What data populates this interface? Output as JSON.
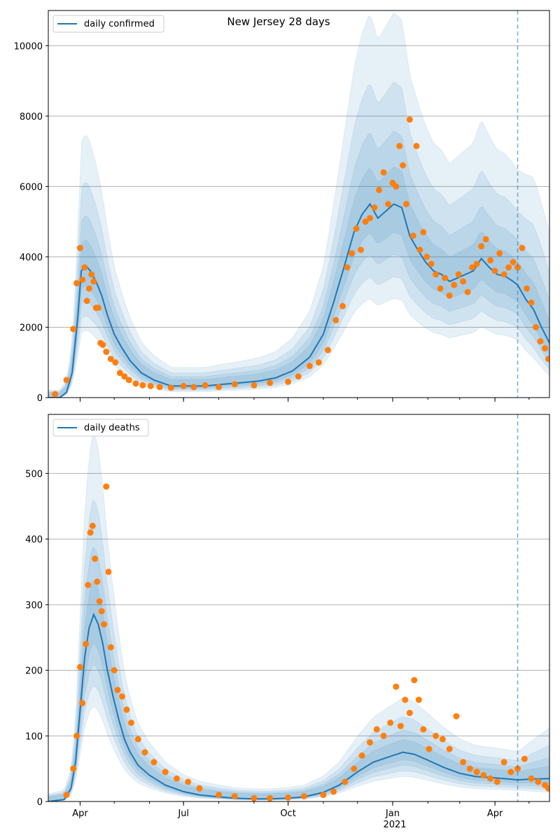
{
  "figure": {
    "title": "New Jersey 28 days",
    "x_tick_labels": [
      "Apr",
      "Jul",
      "Oct",
      "Jan",
      "Apr"
    ],
    "x_tick_dates": [
      "2020-04-01",
      "2020-07-01",
      "2020-10-01",
      "2021-01-01",
      "2021-04-01"
    ],
    "x_year_label": "2021",
    "x_range": [
      "2020-03-04",
      "2021-05-19"
    ],
    "forecast_start": "2021-04-21"
  },
  "chart_data": [
    {
      "type": "line",
      "legend": "daily confirmed",
      "legend_position": "top-left",
      "ylim": [
        0,
        11000
      ],
      "yticks": [
        0,
        2000,
        4000,
        6000,
        8000,
        10000
      ],
      "grid": "horizontal",
      "colors": {
        "line": "#1f77b4",
        "observed": "#ff7f0e",
        "band": "#1f77b4",
        "forecast_marker": "#1f77b4"
      },
      "series": [
        {
          "name": "daily confirmed",
          "x": [
            "2020-03-04",
            "2020-03-14",
            "2020-03-20",
            "2020-03-25",
            "2020-03-30",
            "2020-04-02",
            "2020-04-06",
            "2020-04-10",
            "2020-04-15",
            "2020-04-20",
            "2020-04-25",
            "2020-05-01",
            "2020-05-08",
            "2020-05-15",
            "2020-05-25",
            "2020-06-05",
            "2020-06-20",
            "2020-07-05",
            "2020-07-20",
            "2020-08-05",
            "2020-08-20",
            "2020-09-05",
            "2020-09-20",
            "2020-10-05",
            "2020-10-20",
            "2020-11-01",
            "2020-11-10",
            "2020-11-20",
            "2020-11-28",
            "2020-12-05",
            "2020-12-12",
            "2020-12-19",
            "2020-12-26",
            "2021-01-02",
            "2021-01-09",
            "2021-01-16",
            "2021-01-23",
            "2021-01-30",
            "2021-02-06",
            "2021-02-13",
            "2021-02-20",
            "2021-02-27",
            "2021-03-06",
            "2021-03-13",
            "2021-03-20",
            "2021-03-27",
            "2021-04-03",
            "2021-04-10",
            "2021-04-17",
            "2021-04-21",
            "2021-04-28",
            "2021-05-05",
            "2021-05-12",
            "2021-05-19"
          ],
          "y": [
            0,
            0,
            150,
            700,
            2300,
            3600,
            3750,
            3600,
            3300,
            2900,
            2350,
            1800,
            1400,
            1050,
            700,
            500,
            330,
            330,
            330,
            380,
            420,
            470,
            560,
            760,
            1150,
            1800,
            2700,
            3800,
            4700,
            5200,
            5500,
            5100,
            5300,
            5500,
            5400,
            4600,
            4200,
            3850,
            3600,
            3500,
            3300,
            3400,
            3500,
            3600,
            3950,
            3700,
            3500,
            3450,
            3300,
            3200,
            2800,
            2500,
            2000,
            1550
          ]
        },
        {
          "name": "daily confirmed observed",
          "x": [
            "2020-03-10",
            "2020-03-20",
            "2020-03-26",
            "2020-03-29",
            "2020-04-01",
            "2020-04-03",
            "2020-04-05",
            "2020-04-07",
            "2020-04-09",
            "2020-04-11",
            "2020-04-13",
            "2020-04-15",
            "2020-04-17",
            "2020-04-19",
            "2020-04-21",
            "2020-04-24",
            "2020-04-28",
            "2020-05-02",
            "2020-05-06",
            "2020-05-10",
            "2020-05-14",
            "2020-05-20",
            "2020-05-26",
            "2020-06-02",
            "2020-06-10",
            "2020-06-20",
            "2020-07-01",
            "2020-07-10",
            "2020-07-20",
            "2020-08-01",
            "2020-08-15",
            "2020-09-01",
            "2020-09-15",
            "2020-10-01",
            "2020-10-10",
            "2020-10-20",
            "2020-10-28",
            "2020-11-05",
            "2020-11-12",
            "2020-11-18",
            "2020-11-22",
            "2020-11-26",
            "2020-11-30",
            "2020-12-04",
            "2020-12-08",
            "2020-12-12",
            "2020-12-16",
            "2020-12-20",
            "2020-12-24",
            "2020-12-28",
            "2021-01-01",
            "2021-01-04",
            "2021-01-07",
            "2021-01-10",
            "2021-01-13",
            "2021-01-16",
            "2021-01-19",
            "2021-01-22",
            "2021-01-25",
            "2021-01-28",
            "2021-01-31",
            "2021-02-04",
            "2021-02-08",
            "2021-02-12",
            "2021-02-16",
            "2021-02-20",
            "2021-02-24",
            "2021-02-28",
            "2021-03-04",
            "2021-03-08",
            "2021-03-12",
            "2021-03-16",
            "2021-03-20",
            "2021-03-24",
            "2021-03-28",
            "2021-04-01",
            "2021-04-05",
            "2021-04-09",
            "2021-04-13",
            "2021-04-17",
            "2021-04-21",
            "2021-04-25",
            "2021-04-29",
            "2021-05-03",
            "2021-05-07",
            "2021-05-11",
            "2021-05-15",
            "2021-05-18"
          ],
          "y": [
            100,
            500,
            1950,
            3250,
            4250,
            3350,
            3700,
            2750,
            3100,
            3500,
            3300,
            2550,
            2550,
            1550,
            1500,
            1300,
            1100,
            1000,
            700,
            600,
            500,
            400,
            350,
            330,
            300,
            280,
            330,
            300,
            350,
            300,
            380,
            350,
            420,
            450,
            600,
            900,
            1000,
            1350,
            2200,
            2600,
            3700,
            4100,
            4800,
            4200,
            5000,
            5100,
            5400,
            5900,
            6400,
            5500,
            6100,
            6000,
            7150,
            6600,
            5500,
            7900,
            4600,
            7150,
            4200,
            4700,
            4000,
            3800,
            3500,
            3100,
            3400,
            2900,
            3200,
            3500,
            3300,
            3000,
            3700,
            3800,
            4300,
            4500,
            3900,
            3600,
            4100,
            3500,
            3700,
            3850,
            3700,
            4250,
            3100,
            2700,
            2000,
            1600,
            1400,
            1100
          ]
        }
      ]
    },
    {
      "type": "line",
      "legend": "daily deaths",
      "legend_position": "top-left",
      "ylim": [
        0,
        590
      ],
      "yticks": [
        0,
        100,
        200,
        300,
        400,
        500
      ],
      "grid": "horizontal",
      "colors": {
        "line": "#1f77b4",
        "observed": "#ff7f0e",
        "band": "#1f77b4",
        "forecast_marker": "#1f77b4"
      },
      "series": [
        {
          "name": "daily deaths",
          "x": [
            "2020-03-04",
            "2020-03-18",
            "2020-03-24",
            "2020-03-28",
            "2020-04-01",
            "2020-04-05",
            "2020-04-09",
            "2020-04-13",
            "2020-04-17",
            "2020-04-21",
            "2020-04-25",
            "2020-04-30",
            "2020-05-05",
            "2020-05-10",
            "2020-05-15",
            "2020-05-22",
            "2020-06-01",
            "2020-06-15",
            "2020-07-01",
            "2020-07-15",
            "2020-08-01",
            "2020-08-15",
            "2020-09-01",
            "2020-09-15",
            "2020-10-01",
            "2020-10-15",
            "2020-11-01",
            "2020-11-15",
            "2020-12-01",
            "2020-12-15",
            "2021-01-01",
            "2021-01-10",
            "2021-01-20",
            "2021-02-01",
            "2021-02-15",
            "2021-03-01",
            "2021-03-15",
            "2021-04-01",
            "2021-04-15",
            "2021-04-21",
            "2021-05-01",
            "2021-05-19"
          ],
          "y": [
            0,
            3,
            20,
            60,
            140,
            220,
            265,
            285,
            270,
            240,
            200,
            160,
            125,
            95,
            75,
            55,
            40,
            25,
            15,
            10,
            7,
            5,
            4,
            4,
            5,
            7,
            14,
            25,
            45,
            60,
            70,
            75,
            72,
            63,
            52,
            43,
            38,
            36,
            34,
            33,
            34,
            35
          ]
        },
        {
          "name": "daily deaths observed",
          "x": [
            "2020-03-20",
            "2020-03-26",
            "2020-03-29",
            "2020-04-01",
            "2020-04-03",
            "2020-04-06",
            "2020-04-08",
            "2020-04-10",
            "2020-04-12",
            "2020-04-14",
            "2020-04-16",
            "2020-04-18",
            "2020-04-20",
            "2020-04-22",
            "2020-04-24",
            "2020-04-26",
            "2020-04-28",
            "2020-05-01",
            "2020-05-04",
            "2020-05-08",
            "2020-05-12",
            "2020-05-16",
            "2020-05-22",
            "2020-05-28",
            "2020-06-05",
            "2020-06-15",
            "2020-06-25",
            "2020-07-05",
            "2020-07-15",
            "2020-08-01",
            "2020-08-15",
            "2020-09-01",
            "2020-09-15",
            "2020-10-01",
            "2020-10-15",
            "2020-11-01",
            "2020-11-10",
            "2020-11-20",
            "2020-11-28",
            "2020-12-05",
            "2020-12-12",
            "2020-12-18",
            "2020-12-24",
            "2020-12-30",
            "2021-01-04",
            "2021-01-08",
            "2021-01-12",
            "2021-01-16",
            "2021-01-20",
            "2021-01-24",
            "2021-01-28",
            "2021-02-02",
            "2021-02-08",
            "2021-02-14",
            "2021-02-20",
            "2021-02-26",
            "2021-03-04",
            "2021-03-10",
            "2021-03-16",
            "2021-03-22",
            "2021-03-28",
            "2021-04-03",
            "2021-04-09",
            "2021-04-15",
            "2021-04-21",
            "2021-04-27",
            "2021-05-03",
            "2021-05-09",
            "2021-05-15",
            "2021-05-18"
          ],
          "y": [
            10,
            50,
            100,
            205,
            150,
            240,
            330,
            410,
            420,
            370,
            335,
            305,
            290,
            270,
            480,
            350,
            235,
            200,
            170,
            160,
            140,
            120,
            95,
            75,
            60,
            45,
            35,
            30,
            20,
            10,
            8,
            5,
            5,
            6,
            8,
            10,
            15,
            30,
            50,
            70,
            90,
            110,
            100,
            120,
            175,
            115,
            155,
            135,
            185,
            155,
            110,
            80,
            100,
            95,
            80,
            130,
            60,
            50,
            45,
            40,
            35,
            30,
            60,
            45,
            50,
            65,
            35,
            30,
            25,
            20
          ]
        }
      ]
    }
  ]
}
